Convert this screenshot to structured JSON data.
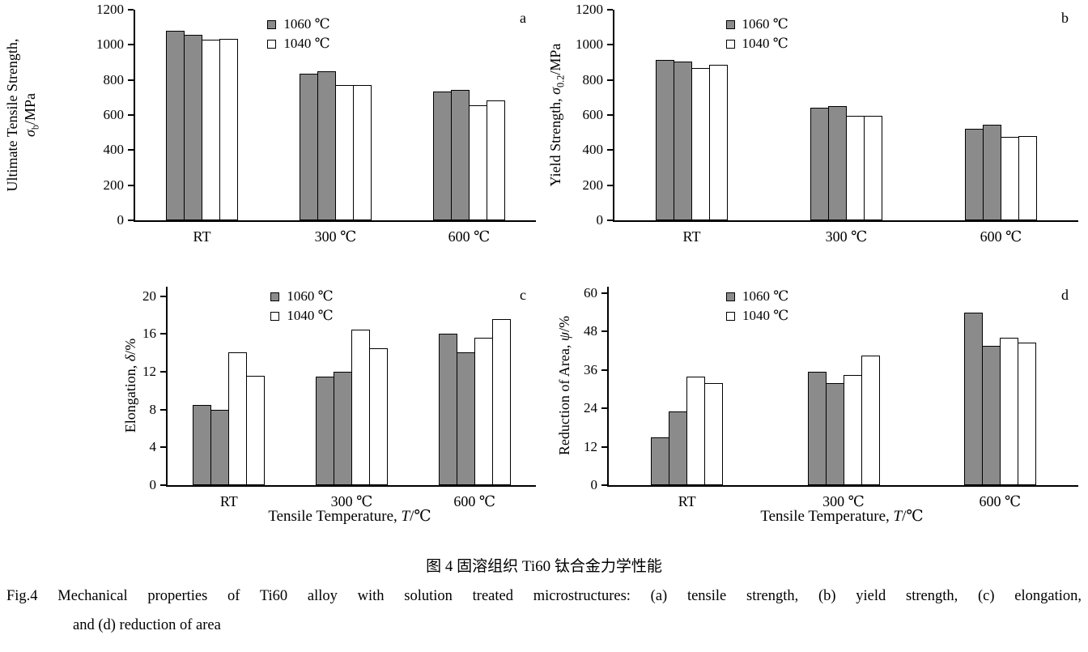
{
  "figure": {
    "caption_cn": "图 4  固溶组织 Ti60 钛合金力学性能",
    "caption_en_line1": "Fig.4   Mechanical properties of Ti60 alloy with solution treated microstructures: (a) tensile strength, (b) yield strength, (c) elongation,",
    "caption_en_line2": "and (d) reduction of area"
  },
  "legend": {
    "entries": [
      {
        "label": "1060 ℃",
        "fill": "#8b8b8b"
      },
      {
        "label": "1040 ℃",
        "fill": "#ffffff"
      }
    ]
  },
  "axis": {
    "x_title_text": "Tensile Temperature, T/℃",
    "x_title_segments": [
      {
        "t": "Tensile Temperature, "
      },
      {
        "t": "T",
        "i": true
      },
      {
        "t": "/℃"
      }
    ]
  },
  "chart_data": [
    {
      "id": "a",
      "panel_label": "a",
      "type": "bar",
      "ylabel": "Ultimate Tensile Strength, σb/MPa",
      "ylabel_lines": [
        [
          {
            "t": "Ultimate Tensile Strength,"
          }
        ],
        [
          {
            "t": "σ",
            "i": true
          },
          {
            "t": "b",
            "sub": true
          },
          {
            "t": "/MPa"
          }
        ]
      ],
      "xlabel": "",
      "categories": [
        "RT",
        "300 ℃",
        "600 ℃"
      ],
      "series": [
        {
          "name": "1060 ℃",
          "values": [
            [
              1080,
              1055
            ],
            [
              835,
              850
            ],
            [
              735,
              745
            ]
          ]
        },
        {
          "name": "1040 ℃",
          "values": [
            [
              1030,
              1035
            ],
            [
              770,
              770
            ],
            [
              655,
              685
            ]
          ]
        }
      ],
      "yticks": [
        0,
        200,
        400,
        600,
        800,
        1000,
        1200
      ],
      "ylim": [
        0,
        1200
      ],
      "grid": false,
      "legend_position": "top-center"
    },
    {
      "id": "b",
      "panel_label": "b",
      "type": "bar",
      "ylabel": "Yield Strength, σ0.2/MPa",
      "ylabel_lines": [
        [
          {
            "t": "Yield Strength, "
          },
          {
            "t": "σ",
            "i": true
          },
          {
            "t": "0.2",
            "sub": true
          },
          {
            "t": "/MPa"
          }
        ]
      ],
      "xlabel": "",
      "categories": [
        "RT",
        "300 ℃",
        "600 ℃"
      ],
      "series": [
        {
          "name": "1060 ℃",
          "values": [
            [
              915,
              905
            ],
            [
              640,
              650
            ],
            [
              520,
              545
            ]
          ]
        },
        {
          "name": "1040 ℃",
          "values": [
            [
              870,
              885
            ],
            [
              595,
              595
            ],
            [
              475,
              480
            ]
          ]
        }
      ],
      "yticks": [
        0,
        200,
        400,
        600,
        800,
        1000,
        1200
      ],
      "ylim": [
        0,
        1200
      ],
      "grid": false,
      "legend_position": "top-center"
    },
    {
      "id": "c",
      "panel_label": "c",
      "type": "bar",
      "ylabel": "Elongation, δ/%",
      "ylabel_lines": [
        [
          {
            "t": "Elongation, "
          },
          {
            "t": "δ",
            "i": true
          },
          {
            "t": "/%"
          }
        ]
      ],
      "xlabel": "Tensile Temperature, T/℃",
      "categories": [
        "RT",
        "300 ℃",
        "600 ℃"
      ],
      "series": [
        {
          "name": "1060 ℃",
          "values": [
            [
              8.5,
              8.0
            ],
            [
              11.5,
              12.0
            ],
            [
              16.0,
              14.1
            ]
          ]
        },
        {
          "name": "1040 ℃",
          "values": [
            [
              14.1,
              11.6
            ],
            [
              16.5,
              14.5
            ],
            [
              15.6,
              17.6
            ]
          ]
        }
      ],
      "yticks": [
        0,
        4,
        8,
        12,
        16,
        20
      ],
      "ylim": [
        0,
        21
      ],
      "grid": false,
      "legend_position": "top-center"
    },
    {
      "id": "d",
      "panel_label": "d",
      "type": "bar",
      "ylabel": "Reduction of Area, ψ/%",
      "ylabel_lines": [
        [
          {
            "t": "Reduction of Area, "
          },
          {
            "t": "ψ",
            "i": true
          },
          {
            "t": "/%"
          }
        ]
      ],
      "xlabel": "Tensile Temperature, T/℃",
      "categories": [
        "RT",
        "300 ℃",
        "600 ℃"
      ],
      "series": [
        {
          "name": "1060 ℃",
          "values": [
            [
              15,
              23
            ],
            [
              35.5,
              32
            ],
            [
              54,
              43.5
            ]
          ]
        },
        {
          "name": "1040 ℃",
          "values": [
            [
              34,
              32
            ],
            [
              34.5,
              40.5
            ],
            [
              46,
              44.5
            ]
          ]
        }
      ],
      "yticks": [
        0,
        12,
        24,
        36,
        48,
        60
      ],
      "ylim": [
        0,
        62
      ],
      "grid": false,
      "legend_position": "top-center"
    }
  ]
}
